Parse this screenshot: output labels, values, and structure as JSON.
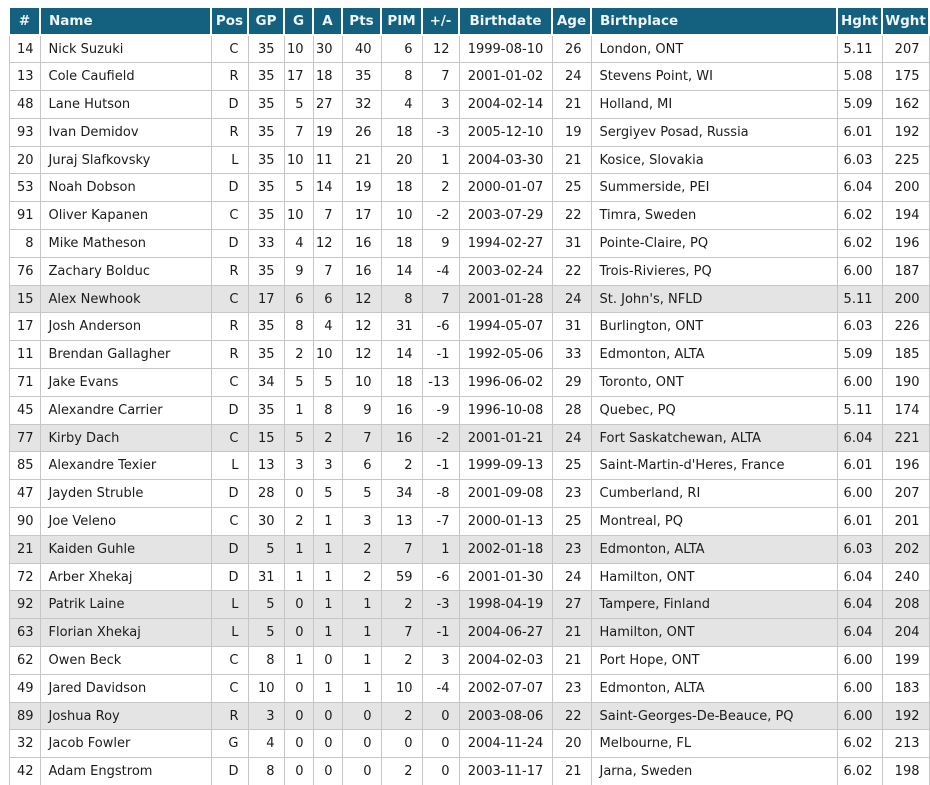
{
  "colors": {
    "header_bg": "#14607f",
    "header_text": "#eef6fa",
    "row_highlight": "#e4e4e4",
    "cell_border": "#c6c6c6",
    "body_text": "#1c1c1c"
  },
  "table": {
    "columns": [
      {
        "key": "num",
        "label": "#"
      },
      {
        "key": "name",
        "label": "Name"
      },
      {
        "key": "pos",
        "label": "Pos"
      },
      {
        "key": "gp",
        "label": "GP"
      },
      {
        "key": "g",
        "label": "G"
      },
      {
        "key": "a",
        "label": "A"
      },
      {
        "key": "pts",
        "label": "Pts"
      },
      {
        "key": "pim",
        "label": "PIM"
      },
      {
        "key": "plusminus",
        "label": "+/-"
      },
      {
        "key": "birthdate",
        "label": "Birthdate"
      },
      {
        "key": "age",
        "label": "Age"
      },
      {
        "key": "birthplace",
        "label": "Birthplace"
      },
      {
        "key": "hght",
        "label": "Hght"
      },
      {
        "key": "wght",
        "label": "Wght"
      }
    ],
    "rows": [
      {
        "num": "14",
        "name": "Nick Suzuki",
        "pos": "C",
        "gp": "35",
        "g": "10",
        "a": "30",
        "pts": "40",
        "pim": "6",
        "plusminus": "12",
        "birthdate": "1999-08-10",
        "age": "26",
        "birthplace": "London, ONT",
        "hght": "5.11",
        "wght": "207",
        "highlight": false
      },
      {
        "num": "13",
        "name": "Cole Caufield",
        "pos": "R",
        "gp": "35",
        "g": "17",
        "a": "18",
        "pts": "35",
        "pim": "8",
        "plusminus": "7",
        "birthdate": "2001-01-02",
        "age": "24",
        "birthplace": "Stevens Point, WI",
        "hght": "5.08",
        "wght": "175",
        "highlight": false
      },
      {
        "num": "48",
        "name": "Lane Hutson",
        "pos": "D",
        "gp": "35",
        "g": "5",
        "a": "27",
        "pts": "32",
        "pim": "4",
        "plusminus": "3",
        "birthdate": "2004-02-14",
        "age": "21",
        "birthplace": "Holland, MI",
        "hght": "5.09",
        "wght": "162",
        "highlight": false
      },
      {
        "num": "93",
        "name": "Ivan Demidov",
        "pos": "R",
        "gp": "35",
        "g": "7",
        "a": "19",
        "pts": "26",
        "pim": "18",
        "plusminus": "-3",
        "birthdate": "2005-12-10",
        "age": "19",
        "birthplace": "Sergiyev Posad, Russia",
        "hght": "6.01",
        "wght": "192",
        "highlight": false
      },
      {
        "num": "20",
        "name": "Juraj Slafkovsky",
        "pos": "L",
        "gp": "35",
        "g": "10",
        "a": "11",
        "pts": "21",
        "pim": "20",
        "plusminus": "1",
        "birthdate": "2004-03-30",
        "age": "21",
        "birthplace": "Kosice, Slovakia",
        "hght": "6.03",
        "wght": "225",
        "highlight": false
      },
      {
        "num": "53",
        "name": "Noah Dobson",
        "pos": "D",
        "gp": "35",
        "g": "5",
        "a": "14",
        "pts": "19",
        "pim": "18",
        "plusminus": "2",
        "birthdate": "2000-01-07",
        "age": "25",
        "birthplace": "Summerside, PEI",
        "hght": "6.04",
        "wght": "200",
        "highlight": false
      },
      {
        "num": "91",
        "name": "Oliver Kapanen",
        "pos": "C",
        "gp": "35",
        "g": "10",
        "a": "7",
        "pts": "17",
        "pim": "10",
        "plusminus": "-2",
        "birthdate": "2003-07-29",
        "age": "22",
        "birthplace": "Timra, Sweden",
        "hght": "6.02",
        "wght": "194",
        "highlight": false
      },
      {
        "num": "8",
        "name": "Mike Matheson",
        "pos": "D",
        "gp": "33",
        "g": "4",
        "a": "12",
        "pts": "16",
        "pim": "18",
        "plusminus": "9",
        "birthdate": "1994-02-27",
        "age": "31",
        "birthplace": "Pointe-Claire, PQ",
        "hght": "6.02",
        "wght": "196",
        "highlight": false
      },
      {
        "num": "76",
        "name": "Zachary Bolduc",
        "pos": "R",
        "gp": "35",
        "g": "9",
        "a": "7",
        "pts": "16",
        "pim": "14",
        "plusminus": "-4",
        "birthdate": "2003-02-24",
        "age": "22",
        "birthplace": "Trois-Rivieres, PQ",
        "hght": "6.00",
        "wght": "187",
        "highlight": false
      },
      {
        "num": "15",
        "name": "Alex Newhook",
        "pos": "C",
        "gp": "17",
        "g": "6",
        "a": "6",
        "pts": "12",
        "pim": "8",
        "plusminus": "7",
        "birthdate": "2001-01-28",
        "age": "24",
        "birthplace": "St. John's, NFLD",
        "hght": "5.11",
        "wght": "200",
        "highlight": true
      },
      {
        "num": "17",
        "name": "Josh Anderson",
        "pos": "R",
        "gp": "35",
        "g": "8",
        "a": "4",
        "pts": "12",
        "pim": "31",
        "plusminus": "-6",
        "birthdate": "1994-05-07",
        "age": "31",
        "birthplace": "Burlington, ONT",
        "hght": "6.03",
        "wght": "226",
        "highlight": false
      },
      {
        "num": "11",
        "name": "Brendan Gallagher",
        "pos": "R",
        "gp": "35",
        "g": "2",
        "a": "10",
        "pts": "12",
        "pim": "14",
        "plusminus": "-1",
        "birthdate": "1992-05-06",
        "age": "33",
        "birthplace": "Edmonton, ALTA",
        "hght": "5.09",
        "wght": "185",
        "highlight": false
      },
      {
        "num": "71",
        "name": "Jake Evans",
        "pos": "C",
        "gp": "34",
        "g": "5",
        "a": "5",
        "pts": "10",
        "pim": "18",
        "plusminus": "-13",
        "birthdate": "1996-06-02",
        "age": "29",
        "birthplace": "Toronto, ONT",
        "hght": "6.00",
        "wght": "190",
        "highlight": false
      },
      {
        "num": "45",
        "name": "Alexandre Carrier",
        "pos": "D",
        "gp": "35",
        "g": "1",
        "a": "8",
        "pts": "9",
        "pim": "16",
        "plusminus": "-9",
        "birthdate": "1996-10-08",
        "age": "28",
        "birthplace": "Quebec, PQ",
        "hght": "5.11",
        "wght": "174",
        "highlight": false
      },
      {
        "num": "77",
        "name": "Kirby Dach",
        "pos": "C",
        "gp": "15",
        "g": "5",
        "a": "2",
        "pts": "7",
        "pim": "16",
        "plusminus": "-2",
        "birthdate": "2001-01-21",
        "age": "24",
        "birthplace": "Fort Saskatchewan, ALTA",
        "hght": "6.04",
        "wght": "221",
        "highlight": true
      },
      {
        "num": "85",
        "name": "Alexandre Texier",
        "pos": "L",
        "gp": "13",
        "g": "3",
        "a": "3",
        "pts": "6",
        "pim": "2",
        "plusminus": "-1",
        "birthdate": "1999-09-13",
        "age": "25",
        "birthplace": "Saint-Martin-d'Heres, France",
        "hght": "6.01",
        "wght": "196",
        "highlight": false
      },
      {
        "num": "47",
        "name": "Jayden Struble",
        "pos": "D",
        "gp": "28",
        "g": "0",
        "a": "5",
        "pts": "5",
        "pim": "34",
        "plusminus": "-8",
        "birthdate": "2001-09-08",
        "age": "23",
        "birthplace": "Cumberland, RI",
        "hght": "6.00",
        "wght": "207",
        "highlight": false
      },
      {
        "num": "90",
        "name": "Joe Veleno",
        "pos": "C",
        "gp": "30",
        "g": "2",
        "a": "1",
        "pts": "3",
        "pim": "13",
        "plusminus": "-7",
        "birthdate": "2000-01-13",
        "age": "25",
        "birthplace": "Montreal, PQ",
        "hght": "6.01",
        "wght": "201",
        "highlight": false
      },
      {
        "num": "21",
        "name": "Kaiden Guhle",
        "pos": "D",
        "gp": "5",
        "g": "1",
        "a": "1",
        "pts": "2",
        "pim": "7",
        "plusminus": "1",
        "birthdate": "2002-01-18",
        "age": "23",
        "birthplace": "Edmonton, ALTA",
        "hght": "6.03",
        "wght": "202",
        "highlight": true
      },
      {
        "num": "72",
        "name": "Arber Xhekaj",
        "pos": "D",
        "gp": "31",
        "g": "1",
        "a": "1",
        "pts": "2",
        "pim": "59",
        "plusminus": "-6",
        "birthdate": "2001-01-30",
        "age": "24",
        "birthplace": "Hamilton, ONT",
        "hght": "6.04",
        "wght": "240",
        "highlight": false
      },
      {
        "num": "92",
        "name": "Patrik Laine",
        "pos": "L",
        "gp": "5",
        "g": "0",
        "a": "1",
        "pts": "1",
        "pim": "2",
        "plusminus": "-3",
        "birthdate": "1998-04-19",
        "age": "27",
        "birthplace": "Tampere, Finland",
        "hght": "6.04",
        "wght": "208",
        "highlight": true
      },
      {
        "num": "63",
        "name": "Florian Xhekaj",
        "pos": "L",
        "gp": "5",
        "g": "0",
        "a": "1",
        "pts": "1",
        "pim": "7",
        "plusminus": "-1",
        "birthdate": "2004-06-27",
        "age": "21",
        "birthplace": "Hamilton, ONT",
        "hght": "6.04",
        "wght": "204",
        "highlight": true
      },
      {
        "num": "62",
        "name": "Owen Beck",
        "pos": "C",
        "gp": "8",
        "g": "1",
        "a": "0",
        "pts": "1",
        "pim": "2",
        "plusminus": "3",
        "birthdate": "2004-02-03",
        "age": "21",
        "birthplace": "Port Hope, ONT",
        "hght": "6.00",
        "wght": "199",
        "highlight": false
      },
      {
        "num": "49",
        "name": "Jared Davidson",
        "pos": "C",
        "gp": "10",
        "g": "0",
        "a": "1",
        "pts": "1",
        "pim": "10",
        "plusminus": "-4",
        "birthdate": "2002-07-07",
        "age": "23",
        "birthplace": "Edmonton, ALTA",
        "hght": "6.00",
        "wght": "183",
        "highlight": false
      },
      {
        "num": "89",
        "name": "Joshua Roy",
        "pos": "R",
        "gp": "3",
        "g": "0",
        "a": "0",
        "pts": "0",
        "pim": "2",
        "plusminus": "0",
        "birthdate": "2003-08-06",
        "age": "22",
        "birthplace": "Saint-Georges-De-Beauce, PQ",
        "hght": "6.00",
        "wght": "192",
        "highlight": true
      },
      {
        "num": "32",
        "name": "Jacob Fowler",
        "pos": "G",
        "gp": "4",
        "g": "0",
        "a": "0",
        "pts": "0",
        "pim": "0",
        "plusminus": "0",
        "birthdate": "2004-11-24",
        "age": "20",
        "birthplace": "Melbourne, FL",
        "hght": "6.02",
        "wght": "213",
        "highlight": false
      },
      {
        "num": "42",
        "name": "Adam Engstrom",
        "pos": "D",
        "gp": "8",
        "g": "0",
        "a": "0",
        "pts": "0",
        "pim": "2",
        "plusminus": "0",
        "birthdate": "2003-11-17",
        "age": "21",
        "birthplace": "Jarna, Sweden",
        "hght": "6.02",
        "wght": "198",
        "highlight": false
      }
    ]
  }
}
